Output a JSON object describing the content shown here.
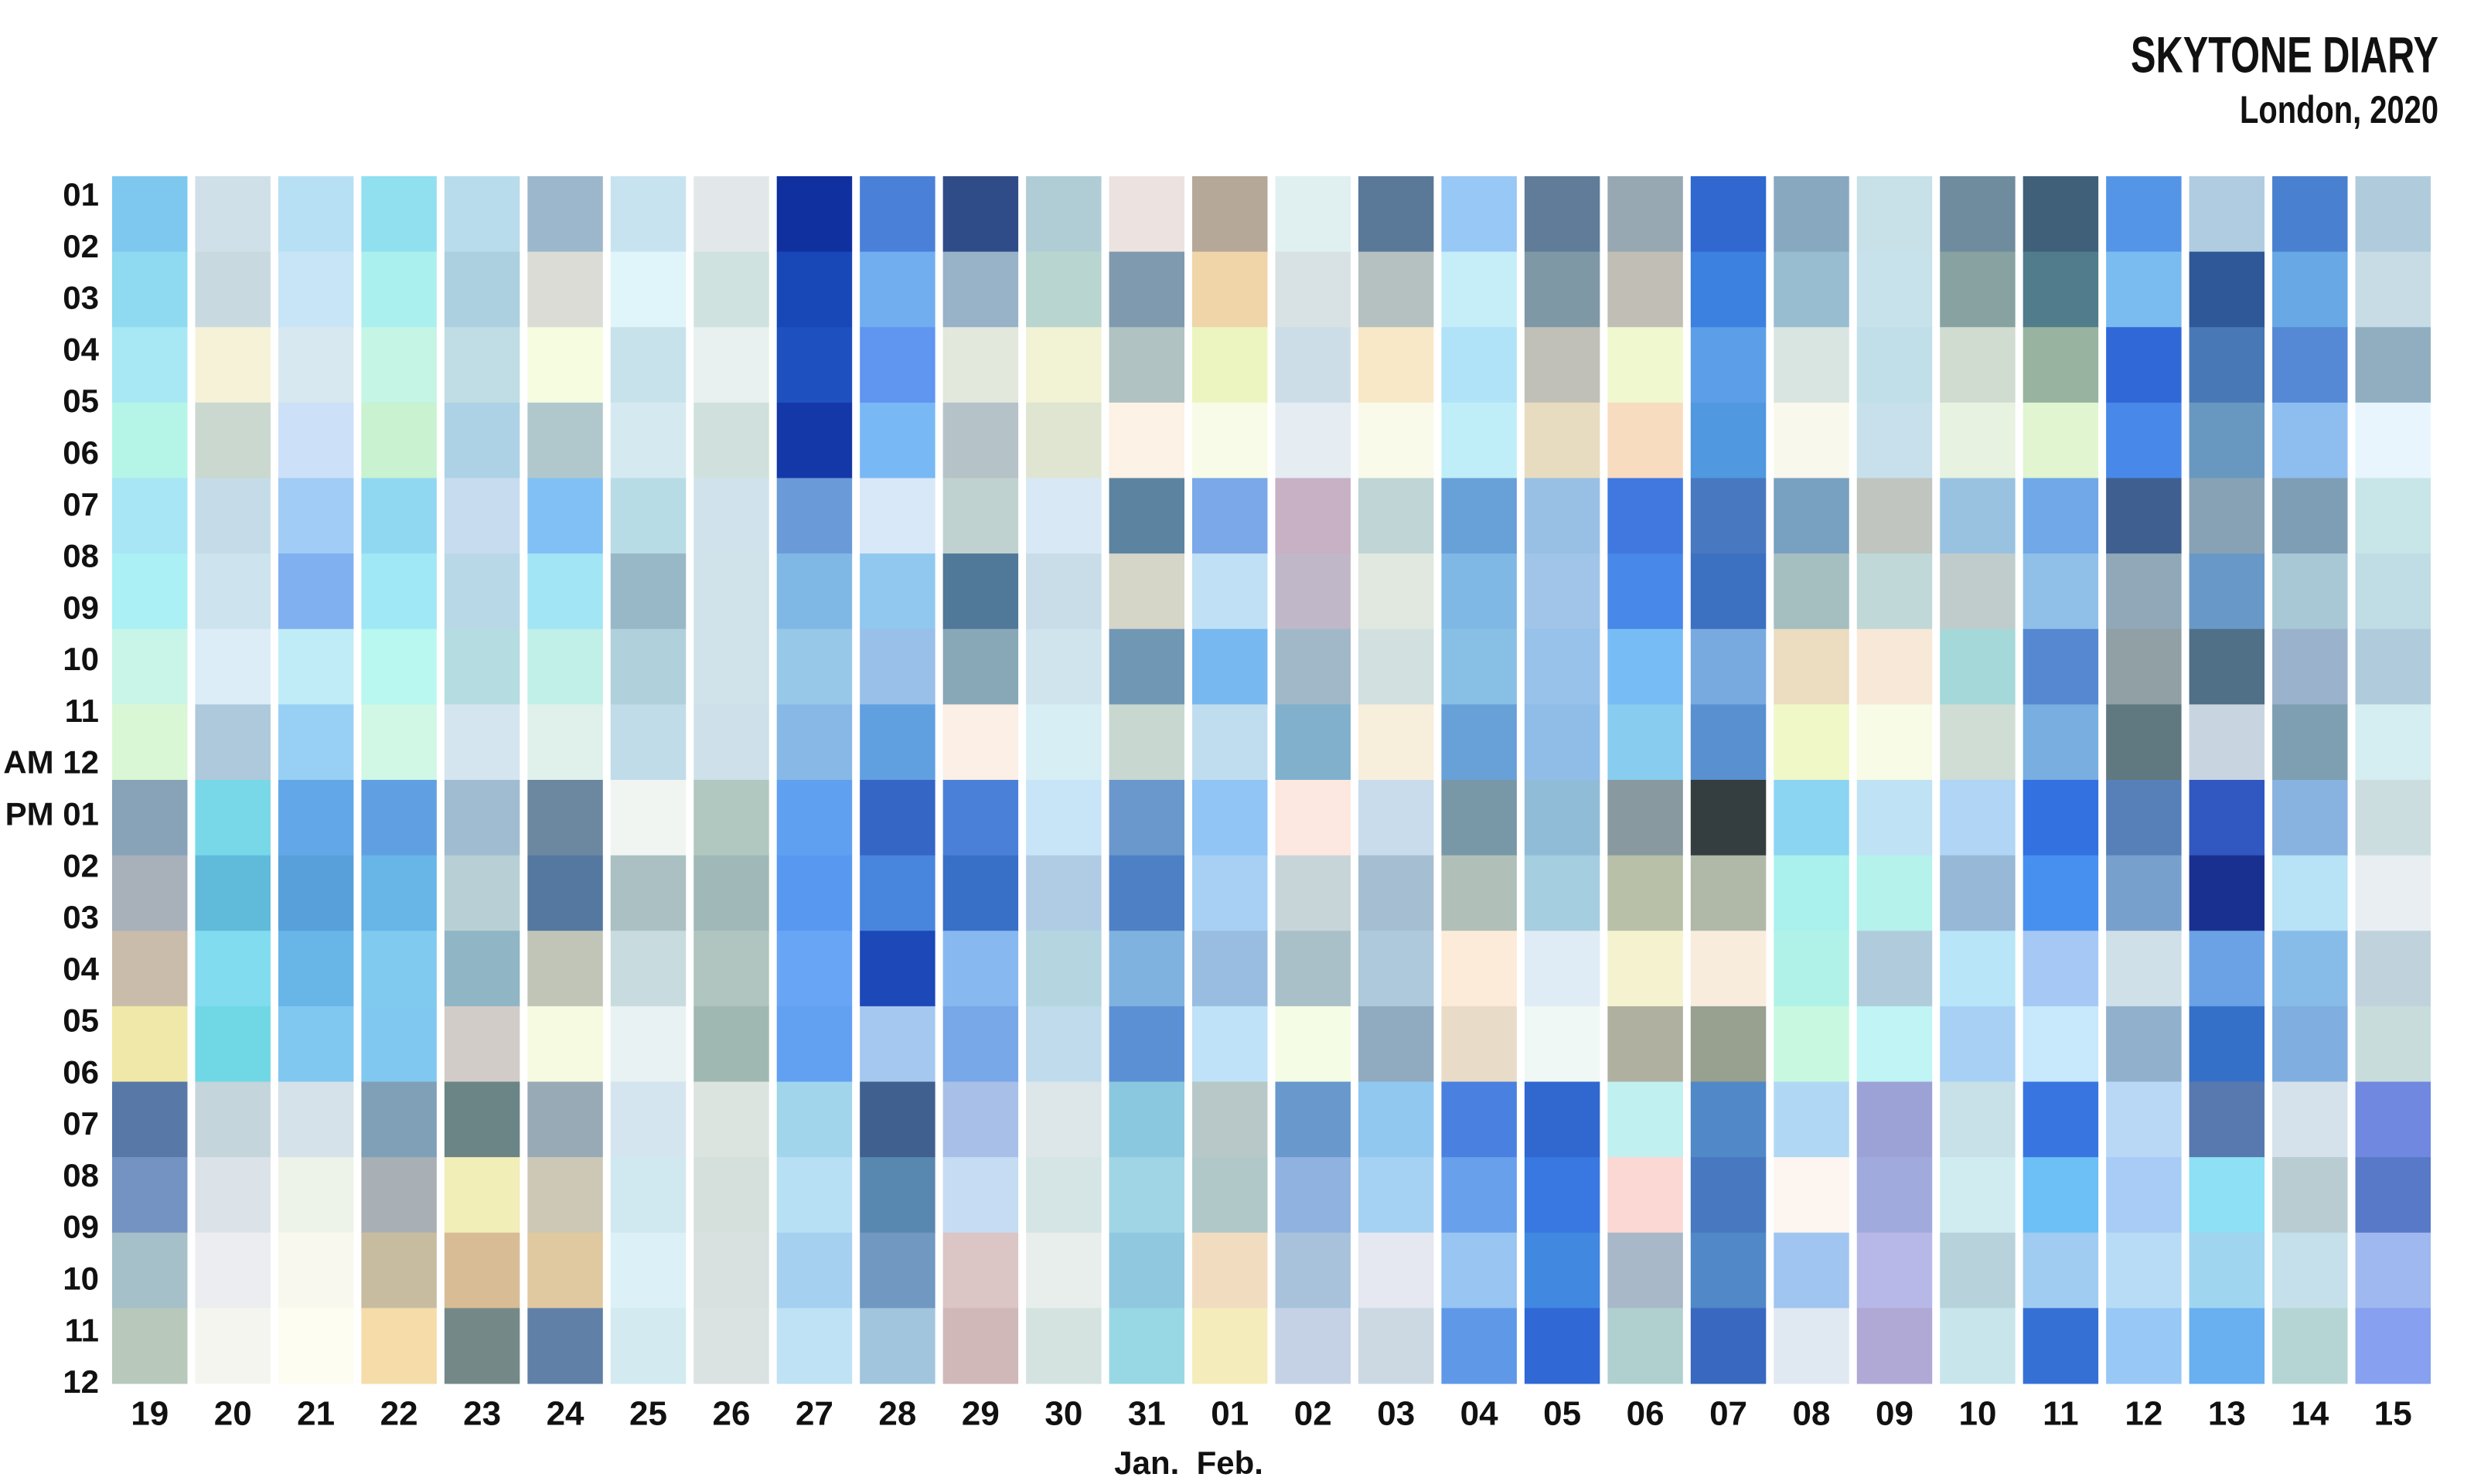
{
  "chart_data": {
    "type": "heatmap",
    "title": "SKYTONE DIARY",
    "subtitle": "London, 2020",
    "categories": [
      "19",
      "20",
      "21",
      "22",
      "23",
      "24",
      "25",
      "26",
      "27",
      "28",
      "29",
      "30",
      "31",
      "01",
      "02",
      "03",
      "04",
      "05",
      "06",
      "07",
      "08",
      "09",
      "10",
      "11",
      "12",
      "13",
      "14",
      "15"
    ],
    "months": [
      null,
      null,
      null,
      null,
      null,
      null,
      null,
      null,
      null,
      null,
      null,
      null,
      "Jan.",
      "Feb.",
      null,
      null,
      null,
      null,
      null,
      null,
      null,
      null,
      null,
      null,
      null,
      null,
      null,
      null
    ],
    "rows": [
      "01",
      "02",
      "03",
      "04",
      "05",
      "06",
      "07",
      "08",
      "09",
      "10",
      "11",
      "AM 12",
      "PM 01",
      "02",
      "03",
      "04",
      "05",
      "06",
      "07",
      "08",
      "09",
      "10",
      "11",
      "12"
    ],
    "colors": [
      [
        "#7ec8f0",
        "#8fdaf0",
        "#a8e8f5",
        "#b5f5e8",
        "#a8e6f5",
        "#aaf0f5",
        "#c8f5e8",
        "#daf7d5",
        "#88a3b8",
        "#a8b0ba",
        "#cabcaa",
        "#f0e8a8",
        "#5878a8",
        "#7593c2",
        "#a5c0c8",
        "#b8c8bb"
      ],
      [
        "#d0e0e8",
        "#c8dadf",
        "#f5f2d8",
        "#cad8d0",
        "#c5dce8",
        "#cde3ed",
        "#dcedf7",
        "#aec8dc",
        "#78d8e8",
        "#60bada",
        "#80dcee",
        "#70d8e5",
        "#c5d5dc",
        "#dce3e8",
        "#ebedf0",
        "#f5f5f0"
      ],
      [
        "#b8e0f5",
        "#c8e5f7",
        "#d8e8f0",
        "#cce0f8",
        "#a0ccf5",
        "#80b0f0",
        "#c0ecf8",
        "#98d0f5",
        "#62a8e8",
        "#58a0da",
        "#68b5e8",
        "#80c8f0",
        "#d5e2ea",
        "#eef3ea",
        "#f8f8ee",
        "#fdfdf2"
      ],
      [
        "#90e0f0",
        "#aaf0ee",
        "#c5f5e5",
        "#c8f2d0",
        "#90d8f2",
        "#a0e8f5",
        "#b8f8f0",
        "#d0f8e5",
        "#60a0e2",
        "#68b5e8",
        "#80caf0",
        "#80c8f0",
        "#80a0b8",
        "#a8b0b5",
        "#c8bca0",
        "#f5dca8"
      ],
      [
        "#b8dcec",
        "#acd0e0",
        "#c0dde5",
        "#aed2e5",
        "#c8dcf0",
        "#b8d8e8",
        "#b5dce0",
        "#d5e5f0",
        "#a0bcd0",
        "#b8d0d5",
        "#90b5c5",
        "#d2ccc8",
        "#6b8586",
        "#f2eeb8",
        "#d8bc95",
        "#748888"
      ],
      [
        "#9cb7cc",
        "#dadcd5",
        "#f5fce0",
        "#b0c8cc",
        "#80c0f5",
        "#a2e5f5",
        "#c0f0e8",
        "#e0f0ea",
        "#6c88a0",
        "#5478a0",
        "#c0c5b8",
        "#f5fae0",
        "#98aab5",
        "#ccc8b5",
        "#e0c8a0",
        "#6080a8"
      ],
      [
        "#c8e3f0",
        "#e0f5fa",
        "#c8e2ec",
        "#d5eaf0",
        "#b8dce5",
        "#98b8c8",
        "#b0d0dc",
        "#c0dce8",
        "#f0f5f2",
        "#aac0c2",
        "#c8dce0",
        "#e8f2f2",
        "#d5e5f0",
        "#d0e8ef",
        "#dcf0f7",
        "#d2eaf0"
      ],
      [
        "#e2e8ea",
        "#d0e2e0",
        "#e8f0f0",
        "#d0e0dc",
        "#d0e3ec",
        "#d0e2ea",
        "#d0e2ea",
        "#cee0ea",
        "#b0c8c0",
        "#a0b8b8",
        "#b0c5c0",
        "#a0b8b2",
        "#dce4e0",
        "#d5e0dc",
        "#d8e0e0",
        "#dae2e2"
      ],
      [
        "#1030a0",
        "#1848b8",
        "#1f50c0",
        "#1538a8",
        "#6a9ad8",
        "#80b8e5",
        "#98c8e8",
        "#88b8e5",
        "#60a0f0",
        "#5898f0",
        "#68a5f5",
        "#62a0f2",
        "#a0d5ec",
        "#b8e0f5",
        "#a5d0f0",
        "#c0e2f5"
      ],
      [
        "#4a80d8",
        "#70aef0",
        "#6095f0",
        "#78b8f5",
        "#d8e8f8",
        "#90c8f0",
        "#98c0e8",
        "#60a0e0",
        "#3565c5",
        "#4885dc",
        "#1c48b8",
        "#a5c8f0",
        "#406090",
        "#5888b0",
        "#7098c0",
        "#a0c5dc"
      ],
      [
        "#304c88",
        "#98b2c8",
        "#e2e8dc",
        "#b5c2c8",
        "#c0d2d0",
        "#507898",
        "#88a8b8",
        "#fcefe5",
        "#4a80d8",
        "#3870c8",
        "#88b8f0",
        "#78a8e8",
        "#a8c0e8",
        "#c5dcf2",
        "#dcc5c5",
        "#d0b8b8"
      ],
      [
        "#b0ccd5",
        "#b8d5d0",
        "#f2f2d5",
        "#e0e5d2",
        "#d8e8f5",
        "#c8dde8",
        "#d0e4ee",
        "#d8eef5",
        "#c8e5f8",
        "#b0cce5",
        "#b5d5e0",
        "#c0dcec",
        "#dde6e8",
        "#d5e5e5",
        "#e8eeec",
        "#d5e3e0"
      ],
      [
        "#ece3e0",
        "#7f9aae",
        "#b0c2c2",
        "#fcf2e5",
        "#5c84a0",
        "#d5d5c8",
        "#7098b5",
        "#c8d8d0",
        "#6a98cc",
        "#4e80c5",
        "#80b2e0",
        "#5c90d5",
        "#8ac8e0",
        "#a0d5e5",
        "#90c8e0",
        "#98d8e5"
      ],
      [
        "#b5a898",
        "#f0d5a8",
        "#ecf5c0",
        "#f8fbe8",
        "#7aa8e8",
        "#c0e0f5",
        "#78b8f0",
        "#c0ddf0",
        "#90c5f5",
        "#a8d0f5",
        "#98bde0",
        "#c0e2f8",
        "#b8c8c8",
        "#b0c8c8",
        "#f2dcc0",
        "#f5ecbc"
      ],
      [
        "#e0f0f0",
        "#d8e2e5",
        "#ccdde8",
        "#e5ecf2",
        "#c8b0c5",
        "#c0b8c8",
        "#a0b8c8",
        "#80b0cc",
        "#fce8e0",
        "#c8d5d8",
        "#aac0c8",
        "#f5fce5",
        "#6898cc",
        "#90b2e0",
        "#a8c2dc",
        "#c5d2e5"
      ],
      [
        "#5a7898",
        "#b5c0c0",
        "#f8e8c8",
        "#fafaeb",
        "#c0d5d5",
        "#e0e8e0",
        "#d2e0e0",
        "#f8eedc",
        "#c8dcec",
        "#a5bed2",
        "#aec8dc",
        "#90aac0",
        "#90c8f0",
        "#a5d2f2",
        "#e5e8f0",
        "#ccd8e2"
      ],
      [
        "#98c8f5",
        "#c5eef8",
        "#b0e2f8",
        "#c0eef8",
        "#68a0d8",
        "#80b8e5",
        "#88c0e5",
        "#68a0d8",
        "#7898a8",
        "#b0c0b8",
        "#fcebd8",
        "#e8dcc8",
        "#4a80e0",
        "#68a0ec",
        "#98c5f2",
        "#6098e8"
      ],
      [
        "#607c98",
        "#7f98a5",
        "#c0c0b8",
        "#e8dcc0",
        "#98c0e5",
        "#a0c5e8",
        "#98c2ea",
        "#90bce8",
        "#90bcd8",
        "#a5cee0",
        "#e0ecf5",
        "#f0f8f5",
        "#3068d0",
        "#3878e0",
        "#4088e0",
        "#3068d5"
      ],
      [
        "#98a8b2",
        "#c0beb5",
        "#f0f8d0",
        "#f8dcc0",
        "#4078e0",
        "#4888e8",
        "#78bcf5",
        "#88ccf0",
        "#8899a0",
        "#b8c0a8",
        "#f5f2d0",
        "#b0b0a0",
        "#c0f0f0",
        "#fcd8d5",
        "#a8b8c8",
        "#b0d0d0"
      ],
      [
        "#3068d0",
        "#3c80e0",
        "#5c9ee8",
        "#5098e0",
        "#4878c0",
        "#3c70c0",
        "#78aae0",
        "#5890d0",
        "#343e40",
        "#b0b8a8",
        "#f8ecdc",
        "#98a090",
        "#5088c8",
        "#4878c0",
        "#5088c8",
        "#3868c0"
      ],
      [
        "#88a8c0",
        "#98bcd0",
        "#d8e5e0",
        "#f8f8ec",
        "#78a0c0",
        "#a5bec0",
        "#ecdcc0",
        "#f0f8c8",
        "#8cd5f2",
        "#aaf0ec",
        "#b0f2e8",
        "#c8f8e0",
        "#b0d8f5",
        "#fcf5f0",
        "#a0c5f0",
        "#e0e8f2"
      ],
      [
        "#c8e0e8",
        "#c8e2ec",
        "#c0dfe8",
        "#c8e0ec",
        "#c0c5c0",
        "#c0d8d8",
        "#f8e8d8",
        "#f8fbe5",
        "#c0e2f5",
        "#b5f2ec",
        "#b0ccdc",
        "#c0f4f5",
        "#9ca2d5",
        "#a0aadc",
        "#b8b8e8",
        "#b0a8d5"
      ],
      [
        "#6f8c9f",
        "#88a2a2",
        "#d0dcd0",
        "#e8f2e0",
        "#98c2e0",
        "#c0cccc",
        "#a5d8d8",
        "#d0ddd5",
        "#b0d5f5",
        "#98b8d8",
        "#b8e5f8",
        "#a8d0f5",
        "#c8e0e8",
        "#d0ecf0",
        "#b8d2dc",
        "#c8e5ec"
      ],
      [
        "#40607a",
        "#507c8c",
        "#98b4a0",
        "#e0f5d0",
        "#70a8e8",
        "#90c0e8",
        "#5588d0",
        "#78aee0",
        "#3370e0",
        "#4890f0",
        "#a5c8f5",
        "#c8e8fc",
        "#3875e0",
        "#6cc0f5",
        "#a0ccf2",
        "#3570d5"
      ],
      [
        "#5595e8",
        "#7abcf0",
        "#3068d8",
        "#4888e8",
        "#3e5f90",
        "#90a8b8",
        "#90a0a5",
        "#607880",
        "#5880b8",
        "#78a0cc",
        "#d0e0e8",
        "#90b0cc",
        "#b8d8f5",
        "#a8ccf5",
        "#b8dcf5",
        "#98c8f5"
      ],
      [
        "#b0cce0",
        "#2f5898",
        "#4878b5",
        "#6898c0",
        "#88a2b5",
        "#6898c8",
        "#507088",
        "#c8d5e0",
        "#3058c0",
        "#1a3090",
        "#6ba2e5",
        "#3570c8",
        "#5878b0",
        "#8ee0f5",
        "#a0d5f0",
        "#68b0f0"
      ],
      [
        "#4a80d0",
        "#68a8e5",
        "#5588d5",
        "#8ebdf0",
        "#7e9eb5",
        "#a8c8d5",
        "#9ab2cc",
        "#7e9fb2",
        "#88b2e0",
        "#b8e2f5",
        "#88bce8",
        "#80aee0",
        "#d5e2ec",
        "#b8ccd2",
        "#c5e0ea",
        "#b5d5d5"
      ],
      [
        "#b0ccdc",
        "#c8dce5",
        "#90aec0",
        "#e8f5fc",
        "#c8e5e8",
        "#c0dce5",
        "#b0ccdc",
        "#d5eef2",
        "#ccdde0",
        "#e8eef2",
        "#c0d2dc",
        "#c8dcdc",
        "#7088e0",
        "#5878c8",
        "#a0b8f0",
        "#88a0f0"
      ]
    ]
  }
}
